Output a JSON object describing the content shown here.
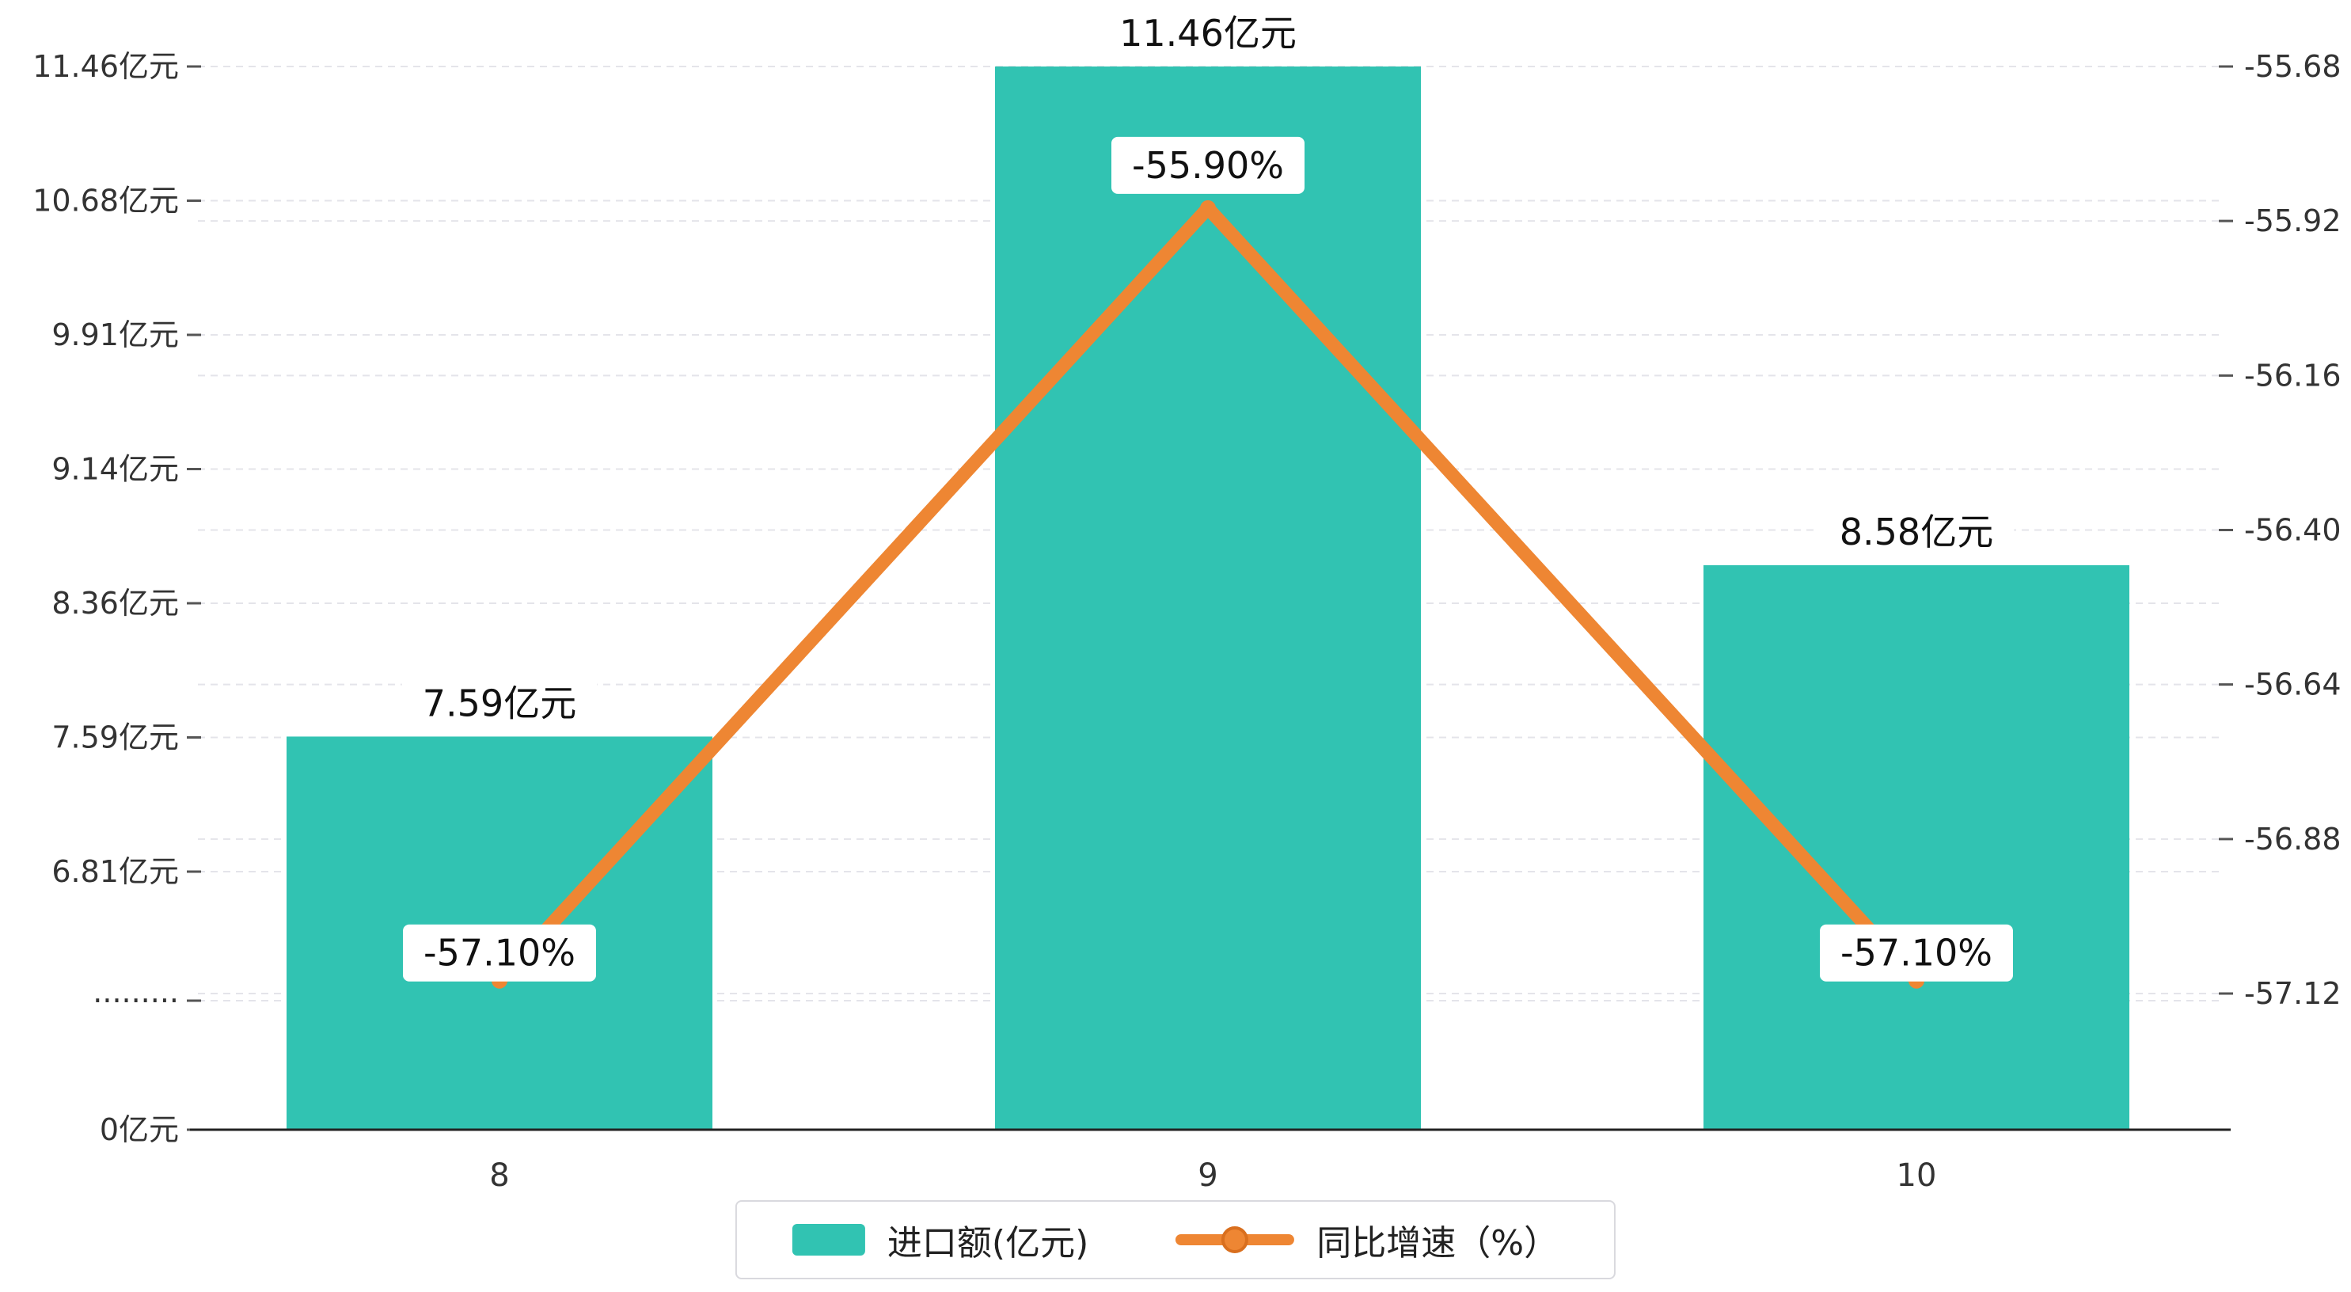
{
  "chart_data": {
    "type": "combo",
    "categories": [
      "8",
      "9",
      "10"
    ],
    "series": [
      {
        "name": "进口额(亿元)",
        "type": "bar",
        "axis": "left",
        "values": [
          7.59,
          11.46,
          8.58
        ],
        "labels": [
          "7.59亿元",
          "11.46亿元",
          "8.58亿元"
        ],
        "color": "#31C3B2"
      },
      {
        "name": "同比增速（%）",
        "type": "line",
        "axis": "right",
        "values": [
          -57.1,
          -55.9,
          -57.1
        ],
        "labels": [
          "-57.10%",
          "-55.90%",
          "-57.10%"
        ],
        "color": "#EE8633"
      }
    ],
    "left_axis": {
      "tick_labels": [
        "11.46亿元",
        "10.68亿元",
        "9.91亿元",
        "9.14亿元",
        "8.36亿元",
        "7.59亿元",
        "6.81亿元",
        "·········",
        "0亿元"
      ],
      "tick_values": [
        11.46,
        10.68,
        9.91,
        9.14,
        8.36,
        7.59,
        6.81,
        null,
        0
      ],
      "has_break": true,
      "range_top": 11.46,
      "range_value_bottom": 6.81
    },
    "right_axis": {
      "tick_labels": [
        "-55.68",
        "-55.92",
        "-56.16",
        "-56.40",
        "-56.64",
        "-56.88",
        "-57.12"
      ],
      "tick_values": [
        -55.68,
        -55.92,
        -56.16,
        -56.4,
        -56.64,
        -56.88,
        -57.12
      ]
    },
    "grid": true,
    "legend_position": "bottom"
  },
  "legend": {
    "items": [
      {
        "label": "进口额(亿元)"
      },
      {
        "label": "同比增速（%）"
      }
    ]
  },
  "colors": {
    "bar": "#31C3B2",
    "line": "#EE8633",
    "line_dark": "#D96F1E",
    "grid": "#e4e4ea",
    "axis_line": "#222222",
    "text": "#333333",
    "label_bg": "#ffffff"
  }
}
